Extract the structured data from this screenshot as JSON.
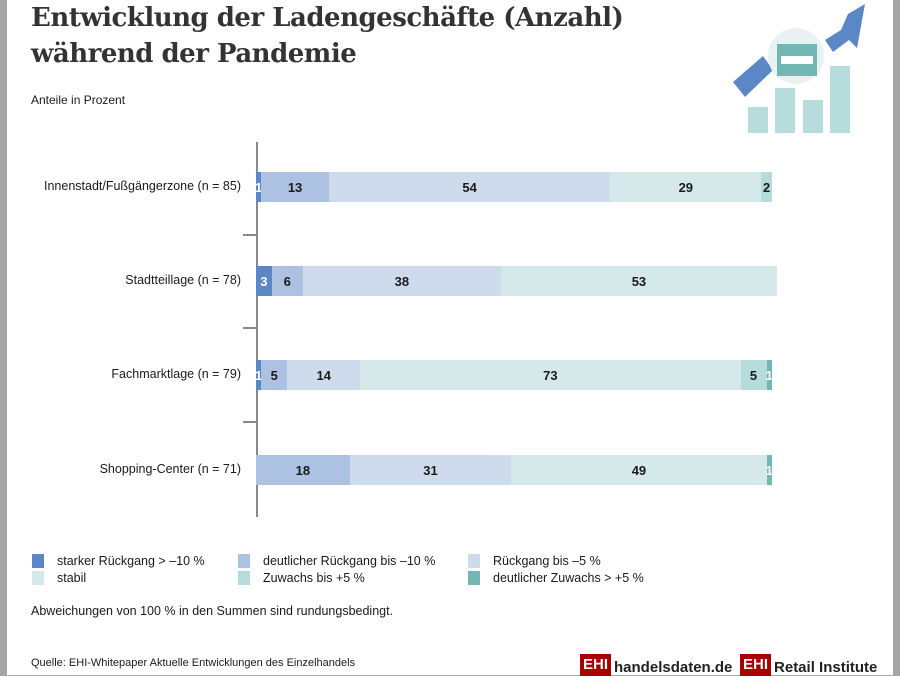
{
  "title": "Entwicklung der Ladengeschäfte (Anzahl) während der Pandemie",
  "subtitle": "Anteile in Prozent",
  "chart_data": {
    "type": "bar",
    "orientation": "horizontal",
    "stacked": true,
    "title": "Entwicklung der Ladengeschäfte (Anzahl) während der Pandemie",
    "ylabel": "Anteile in Prozent",
    "categories": [
      "Innenstadt/Fußgängerzone (n = 85)",
      "Stadtteillage (n = 78)",
      "Fachmarktlage (n = 79)",
      "Shopping-Center (n = 71)"
    ],
    "series": [
      {
        "name": "starker Rückgang > –10 %",
        "color": "#5b87c7",
        "values": [
          1,
          3,
          1,
          0
        ]
      },
      {
        "name": "deutlicher Rückgang bis –10 %",
        "color": "#adc1e2",
        "values": [
          13,
          6,
          5,
          18
        ]
      },
      {
        "name": "Rückgang bis –5 %",
        "color": "#cedbed",
        "values": [
          54,
          38,
          14,
          31
        ]
      },
      {
        "name": "stabil",
        "color": "#d5e9ea",
        "values": [
          29,
          53,
          73,
          49
        ]
      },
      {
        "name": "Zuwachs bis +5 %",
        "color": "#b5dbda",
        "values": [
          2,
          0,
          5,
          0
        ]
      },
      {
        "name": "deutlicher Zuwachs > +5 %",
        "color": "#72b7b3",
        "values": [
          0,
          0,
          1,
          1
        ]
      }
    ],
    "legend": "bottom"
  },
  "note": "Abweichungen von 100 % in den Summen sind rundungsbedingt.",
  "source": "Quelle: EHI-Whitepaper Aktuelle Entwicklungen des Einzelhandels",
  "logos": {
    "handelsdaten_box": "EHI",
    "handelsdaten": "handelsdaten.de",
    "retail_box": "EHI",
    "retail": "Retail Institute"
  },
  "icon": "bar-chart-arrow-shop-icon"
}
